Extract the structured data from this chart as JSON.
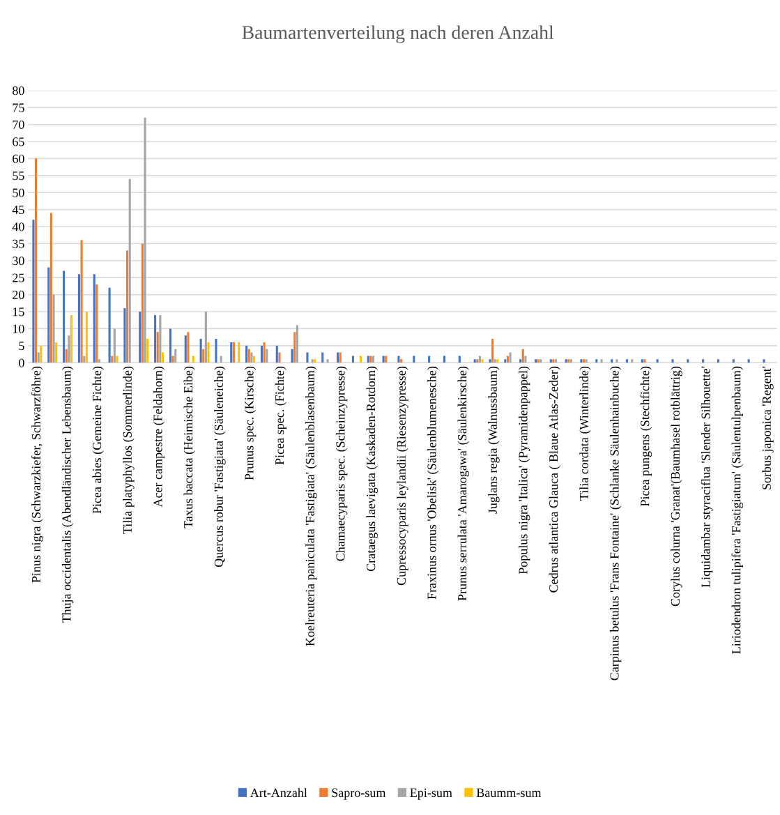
{
  "chart_data": {
    "type": "bar",
    "title": "Baumartenverteilung nach deren Anzahl",
    "categories": [
      "Pinus nigra (Schwarzkiefer, Schwarzföhre)",
      null,
      "Thuja occidentalis (Abendländischer Lebensbaum)",
      null,
      "Picea abies (Gemeine Fichte)",
      null,
      "Tilia platyphyllos (Sommerlinde)",
      null,
      "Acer campestre (Feldahorn)",
      null,
      "Taxus baccata (Heimische Eibe)",
      null,
      "Quercus robur 'Fastigiata' (Säuleneiche)",
      null,
      "Prunus spec. (Kirsche)",
      null,
      "Picea spec. (Fichte)",
      null,
      "Koelreuteria paniculata 'Fastigiata' (Säulenblasenbaum)",
      null,
      "Chamaecyparis spec. (Scheinzypresse)",
      null,
      "Crataegus laevigata (Kaskaden-Rotdorn)",
      null,
      "Cupressocyparis leylandii (Riesenzypresse)",
      null,
      "Fraxinus ornus 'Obelisk' (Säulenblumenesche)",
      null,
      "Prunus serrulata 'Amanogawa' (Säulenkirsche)",
      null,
      "Juglans regia (Walnussbaum)",
      null,
      "Populus nigra 'Italica' (Pyramidenpappel)",
      null,
      "Cedrus atlantica Glauca ( Blaue Atlas-Zeder)",
      null,
      "Tilia cordata (Winterlinde)",
      null,
      "Carpinus betulus 'Frans Fontaine' (Schlanke Säulenhainbuche)",
      null,
      "Picea pungens (Stechfichte)",
      null,
      "Corylus colurna 'Granat'(Baumhasel rotblättrig)",
      null,
      "Liquidambar styraciflua 'Slender Silhouette'",
      null,
      "Liriodendron tulipifera 'Fastigiatum' (Säulentulpenbaum)",
      null,
      "Sorbus japonica 'Regent'"
    ],
    "series": [
      {
        "name": "Art-Anzahl",
        "color": "#4472c4",
        "values": [
          42,
          28,
          27,
          26,
          26,
          22,
          16,
          15,
          14,
          10,
          8,
          7,
          7,
          6,
          5,
          5,
          5,
          4,
          3,
          3,
          3,
          2,
          2,
          2,
          2,
          2,
          2,
          2,
          2,
          1,
          1,
          1,
          1,
          1,
          1,
          1,
          1,
          1,
          1,
          1,
          1,
          1,
          1,
          1,
          1,
          1,
          1,
          1,
          1
        ]
      },
      {
        "name": "Sapro-sum",
        "color": "#ed7d31",
        "values": [
          60,
          44,
          4,
          36,
          23,
          2,
          33,
          35,
          9,
          2,
          9,
          4,
          null,
          6,
          4,
          6,
          3,
          9,
          null,
          null,
          3,
          null,
          2,
          2,
          1,
          null,
          null,
          null,
          null,
          1,
          7,
          2,
          4,
          1,
          1,
          1,
          1,
          null,
          null,
          null,
          1,
          null,
          null,
          null,
          null,
          null,
          null,
          null,
          null
        ]
      },
      {
        "name": "Epi-sum",
        "color": "#a5a5a5",
        "values": [
          3,
          20,
          8,
          2,
          1,
          10,
          54,
          72,
          14,
          4,
          null,
          15,
          2,
          null,
          3,
          4,
          null,
          11,
          1,
          1,
          null,
          null,
          2,
          null,
          null,
          null,
          null,
          null,
          null,
          2,
          1,
          3,
          2,
          1,
          1,
          1,
          1,
          1,
          1,
          1,
          null,
          null,
          null,
          null,
          null,
          null,
          null,
          null,
          null
        ]
      },
      {
        "name": "Baumm-sum",
        "color": "#ffc000",
        "values": [
          5,
          6,
          14,
          15,
          null,
          2,
          null,
          7,
          3,
          null,
          2,
          6,
          null,
          6,
          2,
          null,
          null,
          null,
          1,
          null,
          null,
          2,
          null,
          null,
          null,
          null,
          null,
          null,
          null,
          1,
          1,
          null,
          null,
          null,
          null,
          null,
          null,
          null,
          null,
          null,
          null,
          null,
          null,
          null,
          null,
          null,
          null,
          null,
          null
        ]
      }
    ],
    "ylim": [
      0,
      80
    ],
    "yticks": [
      0,
      5,
      10,
      15,
      20,
      25,
      30,
      35,
      40,
      45,
      50,
      55,
      60,
      65,
      70,
      75,
      80
    ],
    "grid": "y",
    "legend": "bottom"
  }
}
